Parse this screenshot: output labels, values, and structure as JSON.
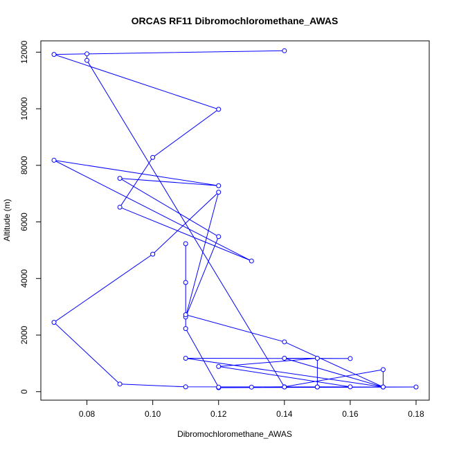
{
  "chart_data": {
    "type": "line",
    "title": "ORCAS RF11 Dibromochloromethane_AWAS",
    "xlabel": "Dibromochloromethane_AWAS",
    "ylabel": "Altitude (m)",
    "xlim": [
      0.066,
      0.184
    ],
    "ylim": [
      -300,
      12400
    ],
    "xticks": [
      "0.08",
      "0.10",
      "0.12",
      "0.14",
      "0.16",
      "0.18"
    ],
    "xtick_values": [
      0.08,
      0.1,
      0.12,
      0.14,
      0.16,
      0.18
    ],
    "yticks": [
      "0",
      "2000",
      "4000",
      "6000",
      "8000",
      "10000",
      "12000"
    ],
    "ytick_values": [
      0,
      2000,
      4000,
      6000,
      8000,
      10000,
      12000
    ],
    "grid": false,
    "series_color": "#0000ff",
    "marker": "open-circle",
    "points": [
      {
        "x": 0.14,
        "y": 12050
      },
      {
        "x": 0.07,
        "y": 11920
      },
      {
        "x": 0.12,
        "y": 9980
      },
      {
        "x": 0.1,
        "y": 8280
      },
      {
        "x": 0.09,
        "y": 6520
      },
      {
        "x": 0.13,
        "y": 4620
      },
      {
        "x": 0.07,
        "y": 8180
      },
      {
        "x": 0.12,
        "y": 7280
      },
      {
        "x": 0.09,
        "y": 7540
      },
      {
        "x": 0.12,
        "y": 5480
      },
      {
        "x": 0.11,
        "y": 2640
      },
      {
        "x": 0.12,
        "y": 7050
      },
      {
        "x": 0.1,
        "y": 4860
      },
      {
        "x": 0.07,
        "y": 2450
      },
      {
        "x": 0.09,
        "y": 270
      },
      {
        "x": 0.11,
        "y": 170
      },
      {
        "x": 0.18,
        "y": 165
      },
      {
        "x": 0.12,
        "y": 140
      },
      {
        "x": 0.14,
        "y": 170
      },
      {
        "x": 0.17,
        "y": 780
      },
      {
        "x": 0.17,
        "y": 165
      },
      {
        "x": 0.11,
        "y": 1180
      },
      {
        "x": 0.16,
        "y": 1170
      },
      {
        "x": 0.14,
        "y": 1180
      },
      {
        "x": 0.17,
        "y": 165
      },
      {
        "x": 0.14,
        "y": 1760
      },
      {
        "x": 0.11,
        "y": 2720
      },
      {
        "x": 0.11,
        "y": 5230
      },
      {
        "x": 0.11,
        "y": 3860
      },
      {
        "x": 0.11,
        "y": 2230
      },
      {
        "x": 0.12,
        "y": 160
      },
      {
        "x": 0.15,
        "y": 165
      },
      {
        "x": 0.15,
        "y": 1180
      },
      {
        "x": 0.12,
        "y": 890
      },
      {
        "x": 0.16,
        "y": 170
      },
      {
        "x": 0.13,
        "y": 160
      },
      {
        "x": 0.15,
        "y": 165
      },
      {
        "x": 0.14,
        "y": 165
      },
      {
        "x": 0.08,
        "y": 11710
      },
      {
        "x": 0.08,
        "y": 11940
      }
    ]
  }
}
